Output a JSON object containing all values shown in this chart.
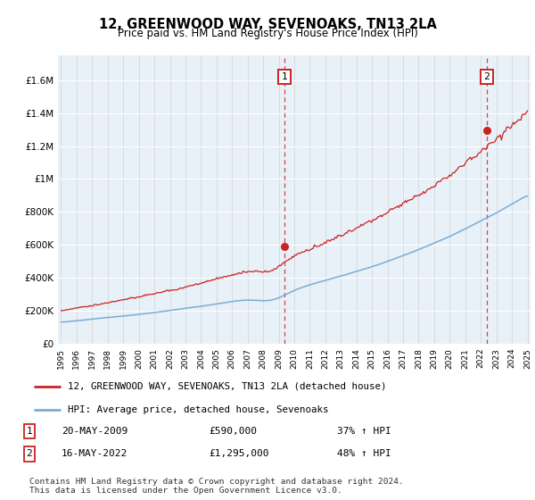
{
  "title": "12, GREENWOOD WAY, SEVENOAKS, TN13 2LA",
  "subtitle": "Price paid vs. HM Land Registry's House Price Index (HPI)",
  "ylabel_ticks": [
    "£0",
    "£200K",
    "£400K",
    "£600K",
    "£800K",
    "£1M",
    "£1.2M",
    "£1.4M",
    "£1.6M"
  ],
  "ytick_values": [
    0,
    200000,
    400000,
    600000,
    800000,
    1000000,
    1200000,
    1400000,
    1600000
  ],
  "ylim": [
    0,
    1750000
  ],
  "year_start": 1995,
  "year_end": 2025,
  "sale1_year": 2009.38,
  "sale1_price": 590000,
  "sale2_year": 2022.38,
  "sale2_price": 1295000,
  "sale1_date": "20-MAY-2009",
  "sale1_pct": "37%",
  "sale2_date": "16-MAY-2022",
  "sale2_pct": "48%",
  "hpi_color": "#7aadd4",
  "price_color": "#cc2222",
  "plot_bg": "#e8f0f8",
  "legend_label_price": "12, GREENWOOD WAY, SEVENOAKS, TN13 2LA (detached house)",
  "legend_label_hpi": "HPI: Average price, detached house, Sevenoaks",
  "footnote": "Contains HM Land Registry data © Crown copyright and database right 2024.\nThis data is licensed under the Open Government Licence v3.0."
}
